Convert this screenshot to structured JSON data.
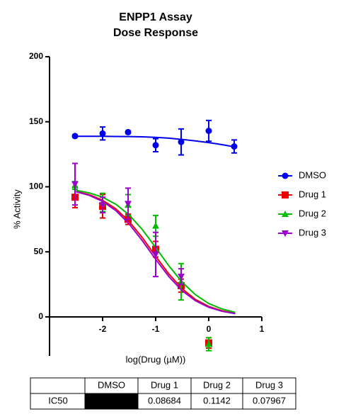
{
  "chart_data": {
    "type": "dose_response",
    "title": "ENPP1 Assay",
    "subtitle": "Dose Response",
    "x_label": "log(Drug (µM))",
    "y_label": "% Activity",
    "xlim": [
      -3,
      1
    ],
    "xticks": [
      -2,
      -1,
      0,
      1
    ],
    "ylim": [
      -30,
      200
    ],
    "yticks": [
      0,
      50,
      100,
      150,
      200
    ],
    "legend": "right",
    "x": [
      -2.52,
      -2,
      -1.52,
      -1,
      -0.52,
      0,
      0.48
    ],
    "curve_x": [
      -2.5,
      -2.25,
      -2,
      -1.75,
      -1.5,
      -1.25,
      -1,
      -0.75,
      -0.5,
      -0.25,
      0,
      0.25,
      0.5
    ],
    "series": [
      {
        "name": "DMSO",
        "color": "#0000ee",
        "marker": "circle",
        "values": [
          139,
          141,
          142,
          132,
          134.5,
          143,
          131
        ],
        "errors": [
          1,
          5,
          1,
          5,
          10,
          8,
          5
        ],
        "curve": [
          138.8,
          138.8,
          138.8,
          138.7,
          138.6,
          138.4,
          138,
          137.4,
          136.4,
          135.3,
          134,
          132.4,
          130.6
        ]
      },
      {
        "name": "Drug 1",
        "color": "#ee0000",
        "marker": "square",
        "values": [
          92,
          85,
          75,
          52,
          24,
          -20,
          null
        ],
        "errors": [
          8,
          9,
          4,
          6,
          5,
          4,
          null
        ],
        "curve": [
          96.5,
          93.9,
          89.7,
          83.1,
          73.4,
          60.8,
          46.6,
          32.9,
          21.6,
          13.4,
          8.0,
          4.7,
          2.7
        ]
      },
      {
        "name": "Drug 2",
        "color": "#00bb00",
        "marker": "triangle-up",
        "values": [
          101,
          88,
          86,
          70,
          27,
          -21,
          null
        ],
        "errors": [
          3,
          7,
          8,
          8,
          14,
          5,
          null
        ],
        "curve": [
          97.3,
          95.3,
          92.0,
          86.6,
          78.4,
          67.1,
          53.4,
          39.2,
          26.7,
          17.0,
          10.3,
          6.1,
          3.5
        ]
      },
      {
        "name": "Drug 3",
        "color": "#9900cc",
        "marker": "triangle-down",
        "values": [
          102,
          86,
          87,
          48,
          31,
          null,
          null
        ],
        "errors": [
          16,
          6,
          12,
          17,
          6,
          null,
          null
        ],
        "curve": [
          96.2,
          93.4,
          88.8,
          81.7,
          71.5,
          58.5,
          44.3,
          30.9,
          20.1,
          12.4,
          7.4,
          4.3,
          2.5
        ]
      }
    ]
  },
  "table": {
    "columns": [
      "DMSO",
      "Drug 1",
      "Drug 2",
      "Drug 3"
    ],
    "row_label": "IC50",
    "values": [
      null,
      0.08684,
      0.1142,
      0.07967
    ]
  }
}
